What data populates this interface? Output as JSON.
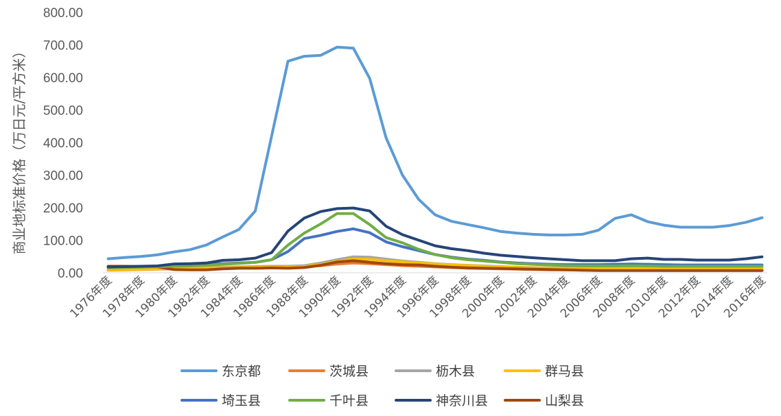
{
  "chart_data": {
    "type": "line",
    "title": "",
    "xlabel": "",
    "ylabel": "商业地标准价格（万日元/平方米）",
    "ylim": [
      0,
      800
    ],
    "yticks": [
      "0.00",
      "100.00",
      "200.00",
      "300.00",
      "400.00",
      "500.00",
      "600.00",
      "700.00",
      "800.00"
    ],
    "grid": false,
    "legend_position": "bottom",
    "x": [
      "1976年度",
      "1977年度",
      "1978年度",
      "1979年度",
      "1980年度",
      "1981年度",
      "1982年度",
      "1983年度",
      "1984年度",
      "1985年度",
      "1986年度",
      "1987年度",
      "1988年度",
      "1989年度",
      "1990年度",
      "1991年度",
      "1992年度",
      "1993年度",
      "1994年度",
      "1995年度",
      "1996年度",
      "1997年度",
      "1998年度",
      "1999年度",
      "2000年度",
      "2001年度",
      "2002年度",
      "2003年度",
      "2004年度",
      "2005年度",
      "2006年度",
      "2007年度",
      "2008年度",
      "2009年度",
      "2010年度",
      "2011年度",
      "2012年度",
      "2013年度",
      "2014年度",
      "2015年度",
      "2016年度"
    ],
    "xtick_labels": [
      "1976年度",
      "1978年度",
      "1980年度",
      "1982年度",
      "1984年度",
      "1986年度",
      "1988年度",
      "1990年度",
      "1992年度",
      "1994年度",
      "1996年度",
      "1998年度",
      "2000年度",
      "2002年度",
      "2004年度",
      "2006年度",
      "2008年度",
      "2010年度",
      "2012年度",
      "2014年度",
      "2016年度"
    ],
    "series": [
      {
        "name": "东京都",
        "color": "#5B9BD5",
        "values": [
          43,
          47,
          50,
          55,
          64,
          71,
          85,
          110,
          133,
          190,
          420,
          650,
          665,
          668,
          693,
          690,
          597,
          415,
          300,
          225,
          178,
          158,
          148,
          138,
          127,
          122,
          118,
          116,
          116,
          118,
          131,
          167,
          178,
          157,
          146,
          140,
          140,
          140,
          145,
          155,
          169
        ]
      },
      {
        "name": "茨城县",
        "color": "#ED7D31",
        "values": [
          8,
          9,
          10,
          11,
          12,
          13,
          14,
          15,
          16,
          16,
          17,
          18,
          19,
          22,
          27,
          30,
          28,
          25,
          22,
          20,
          18,
          16,
          14,
          13,
          12,
          11,
          10,
          9,
          9,
          8,
          8,
          8,
          8,
          8,
          7,
          7,
          7,
          7,
          7,
          7,
          7
        ]
      },
      {
        "name": "枥木县",
        "color": "#A5A5A5",
        "values": [
          10,
          11,
          12,
          13,
          14,
          15,
          16,
          17,
          18,
          19,
          20,
          20,
          22,
          30,
          40,
          49,
          48,
          42,
          36,
          32,
          28,
          25,
          23,
          21,
          19,
          17,
          16,
          15,
          14,
          14,
          14,
          14,
          14,
          14,
          14,
          14,
          14,
          14,
          14,
          14,
          14
        ]
      },
      {
        "name": "群马县",
        "color": "#FFC000",
        "values": [
          9,
          10,
          11,
          12,
          13,
          14,
          15,
          15,
          16,
          17,
          17,
          17,
          19,
          25,
          35,
          42,
          41,
          37,
          33,
          30,
          27,
          24,
          22,
          20,
          18,
          16,
          15,
          14,
          13,
          13,
          13,
          13,
          13,
          13,
          12,
          12,
          12,
          12,
          12,
          12,
          12
        ]
      },
      {
        "name": "埼玉县",
        "color": "#4472C4",
        "values": [
          17,
          18,
          19,
          20,
          22,
          24,
          25,
          28,
          30,
          32,
          40,
          65,
          105,
          115,
          127,
          135,
          123,
          95,
          80,
          68,
          56,
          48,
          42,
          38,
          33,
          30,
          28,
          26,
          25,
          25,
          25,
          26,
          27,
          26,
          25,
          24,
          24,
          24,
          24,
          24,
          24
        ]
      },
      {
        "name": "千叶县",
        "color": "#70AD47",
        "values": [
          15,
          16,
          17,
          18,
          20,
          21,
          23,
          26,
          29,
          32,
          40,
          85,
          122,
          150,
          182,
          182,
          148,
          108,
          92,
          72,
          56,
          46,
          40,
          36,
          32,
          28,
          26,
          24,
          22,
          21,
          21,
          21,
          22,
          21,
          20,
          20,
          20,
          20,
          20,
          20,
          20
        ]
      },
      {
        "name": "神奈川县",
        "color": "#264478",
        "values": [
          18,
          19,
          20,
          21,
          27,
          28,
          30,
          38,
          40,
          45,
          62,
          128,
          168,
          188,
          197,
          199,
          190,
          143,
          117,
          100,
          83,
          74,
          68,
          60,
          54,
          50,
          46,
          43,
          40,
          37,
          37,
          37,
          43,
          45,
          41,
          41,
          39,
          39,
          39,
          43,
          49
        ]
      },
      {
        "name": "山梨县",
        "color": "#9E480E",
        "values": [
          20,
          20,
          19,
          18,
          10,
          9,
          9,
          12,
          14,
          14,
          15,
          14,
          16,
          23,
          33,
          37,
          32,
          28,
          25,
          24,
          20,
          17,
          15,
          14,
          13,
          12,
          11,
          10,
          9,
          8,
          7,
          7,
          7,
          7,
          7,
          7,
          7,
          7,
          7,
          7,
          7
        ]
      }
    ]
  }
}
